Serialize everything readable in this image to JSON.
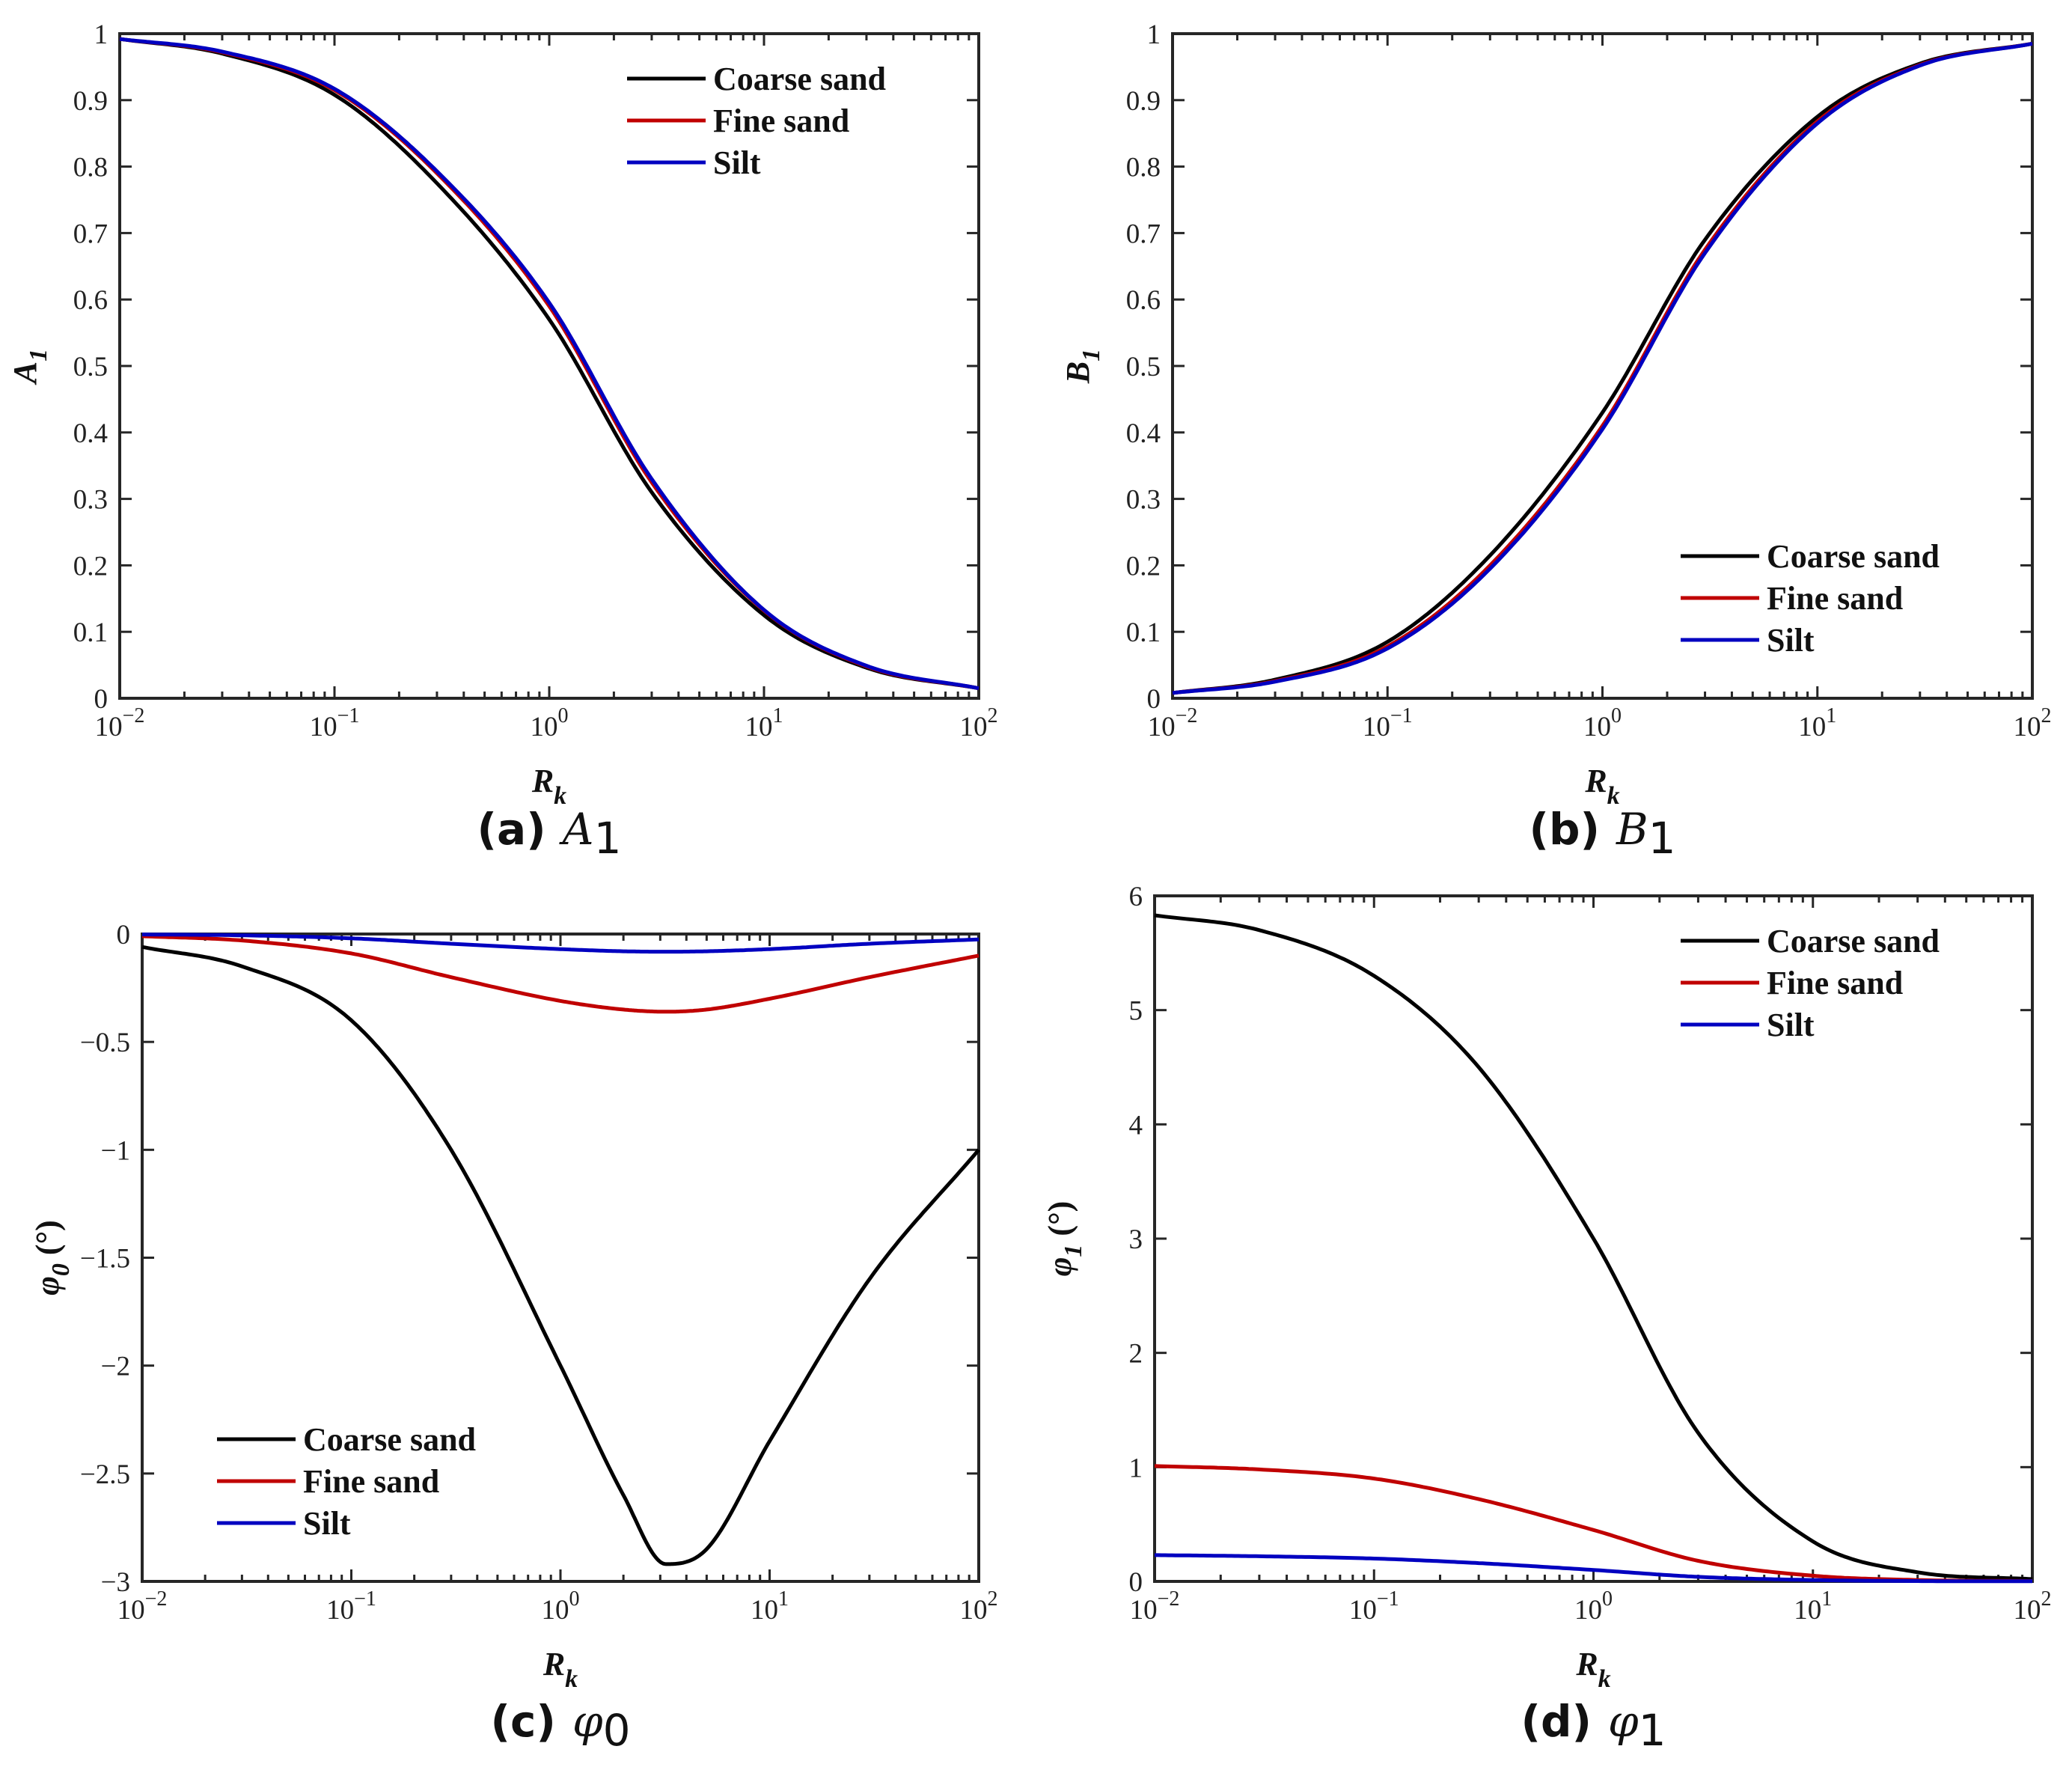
{
  "chart_data": [
    {
      "type": "line",
      "caption": {
        "label": "(a)",
        "symbol": "A",
        "subscript": "1"
      },
      "xlabel": {
        "main": "R",
        "sub": "k"
      },
      "ylabel": {
        "main": "A",
        "sub": "1",
        "suffix": ""
      },
      "xscale": "log",
      "xlim": [
        0.01,
        100
      ],
      "ylim": [
        0,
        1
      ],
      "x_ticks": [
        {
          "base": "10",
          "exp": "−2"
        },
        {
          "base": "10",
          "exp": "−1"
        },
        {
          "base": "10",
          "exp": "0"
        },
        {
          "base": "10",
          "exp": "1"
        },
        {
          "base": "10",
          "exp": "2"
        }
      ],
      "y_ticks": [
        0,
        0.1,
        0.2,
        0.3,
        0.4,
        0.5,
        0.6,
        0.7,
        0.8,
        0.9,
        1
      ],
      "y_tick_labels": [
        "0",
        "0.1",
        "0.2",
        "0.3",
        "0.4",
        "0.5",
        "0.6",
        "0.7",
        "0.8",
        "0.9",
        "1"
      ],
      "legend_position": "top-right",
      "x": [
        0.01,
        0.03,
        0.1,
        0.3,
        1,
        3,
        10,
        30,
        100
      ],
      "series": [
        {
          "name": "Coarse sand",
          "color": "#000000",
          "values": [
            0.992,
            0.97,
            0.908,
            0.775,
            0.57,
            0.31,
            0.125,
            0.046,
            0.015
          ]
        },
        {
          "name": "Fine sand",
          "color": "#c00000",
          "values": [
            0.992,
            0.972,
            0.915,
            0.79,
            0.59,
            0.325,
            0.132,
            0.048,
            0.015
          ]
        },
        {
          "name": "Silt",
          "color": "#0000c0",
          "values": [
            0.992,
            0.973,
            0.917,
            0.793,
            0.595,
            0.33,
            0.133,
            0.049,
            0.015
          ]
        }
      ]
    },
    {
      "type": "line",
      "caption": {
        "label": "(b)",
        "symbol": "B",
        "subscript": "1"
      },
      "xlabel": {
        "main": "R",
        "sub": "k"
      },
      "ylabel": {
        "main": "B",
        "sub": "1",
        "suffix": ""
      },
      "xscale": "log",
      "xlim": [
        0.01,
        100
      ],
      "ylim": [
        0,
        1
      ],
      "x_ticks": [
        {
          "base": "10",
          "exp": "−2"
        },
        {
          "base": "10",
          "exp": "−1"
        },
        {
          "base": "10",
          "exp": "0"
        },
        {
          "base": "10",
          "exp": "1"
        },
        {
          "base": "10",
          "exp": "2"
        }
      ],
      "y_ticks": [
        0,
        0.1,
        0.2,
        0.3,
        0.4,
        0.5,
        0.6,
        0.7,
        0.8,
        0.9,
        1
      ],
      "y_tick_labels": [
        "0",
        "0.1",
        "0.2",
        "0.3",
        "0.4",
        "0.5",
        "0.6",
        "0.7",
        "0.8",
        "0.9",
        "1"
      ],
      "legend_position": "bottom-right",
      "x": [
        0.01,
        0.03,
        0.1,
        0.3,
        1,
        3,
        10,
        30,
        100
      ],
      "series": [
        {
          "name": "Coarse sand",
          "color": "#000000",
          "values": [
            0.008,
            0.028,
            0.085,
            0.215,
            0.43,
            0.69,
            0.875,
            0.955,
            0.985
          ]
        },
        {
          "name": "Fine sand",
          "color": "#c00000",
          "values": [
            0.008,
            0.026,
            0.078,
            0.2,
            0.41,
            0.675,
            0.868,
            0.953,
            0.985
          ]
        },
        {
          "name": "Silt",
          "color": "#0000c0",
          "values": [
            0.008,
            0.025,
            0.075,
            0.195,
            0.405,
            0.67,
            0.865,
            0.952,
            0.985
          ]
        }
      ]
    },
    {
      "type": "line",
      "caption": {
        "label": "(c)",
        "symbol": "φ",
        "subscript": "0"
      },
      "xlabel": {
        "main": "R",
        "sub": "k"
      },
      "ylabel": {
        "main": "φ",
        "sub": "0",
        "suffix": " (°)"
      },
      "xscale": "log",
      "xlim": [
        0.01,
        100
      ],
      "ylim": [
        -3,
        0
      ],
      "x_ticks": [
        {
          "base": "10",
          "exp": "−2"
        },
        {
          "base": "10",
          "exp": "−1"
        },
        {
          "base": "10",
          "exp": "0"
        },
        {
          "base": "10",
          "exp": "1"
        },
        {
          "base": "10",
          "exp": "2"
        }
      ],
      "y_ticks": [
        -3,
        -2.5,
        -2,
        -1.5,
        -1,
        -0.5,
        0
      ],
      "y_tick_labels": [
        "−3",
        "−2.5",
        "−2",
        "−1.5",
        "−1",
        "−0.5",
        "0"
      ],
      "legend_position": "bottom-left",
      "x": [
        0.01,
        0.03,
        0.1,
        0.3,
        1,
        2,
        3.2,
        5,
        10,
        30,
        100
      ],
      "series": [
        {
          "name": "Coarse sand",
          "color": "#000000",
          "values": [
            -0.06,
            -0.15,
            -0.4,
            -1.0,
            -2.0,
            -2.6,
            -2.92,
            -2.85,
            -2.35,
            -1.6,
            -1.0
          ]
        },
        {
          "name": "Fine sand",
          "color": "#c00000",
          "values": [
            -0.01,
            -0.03,
            -0.09,
            -0.2,
            -0.31,
            -0.35,
            -0.36,
            -0.35,
            -0.3,
            -0.2,
            -0.1
          ]
        },
        {
          "name": "Silt",
          "color": "#0000c0",
          "values": [
            -0.002,
            -0.006,
            -0.02,
            -0.045,
            -0.07,
            -0.08,
            -0.082,
            -0.08,
            -0.07,
            -0.045,
            -0.025
          ]
        }
      ]
    },
    {
      "type": "line",
      "caption": {
        "label": "(d)",
        "symbol": "φ",
        "subscript": "1"
      },
      "xlabel": {
        "main": "R",
        "sub": "k"
      },
      "ylabel": {
        "main": "φ",
        "sub": "1",
        "suffix": " (°)"
      },
      "xscale": "log",
      "xlim": [
        0.01,
        100
      ],
      "ylim": [
        0,
        6
      ],
      "x_ticks": [
        {
          "base": "10",
          "exp": "−2"
        },
        {
          "base": "10",
          "exp": "−1"
        },
        {
          "base": "10",
          "exp": "0"
        },
        {
          "base": "10",
          "exp": "1"
        },
        {
          "base": "10",
          "exp": "2"
        }
      ],
      "y_ticks": [
        0,
        1,
        2,
        3,
        4,
        5,
        6
      ],
      "y_tick_labels": [
        "0",
        "1",
        "2",
        "3",
        "4",
        "5",
        "6"
      ],
      "legend_position": "top-right",
      "x": [
        0.01,
        0.03,
        0.1,
        0.3,
        1,
        3,
        10,
        30,
        100
      ],
      "series": [
        {
          "name": "Coarse sand",
          "color": "#000000",
          "values": [
            5.83,
            5.7,
            5.3,
            4.5,
            3.0,
            1.3,
            0.35,
            0.08,
            0.02
          ]
        },
        {
          "name": "Fine sand",
          "color": "#c00000",
          "values": [
            1.01,
            0.98,
            0.9,
            0.72,
            0.45,
            0.18,
            0.05,
            0.012,
            0.003
          ]
        },
        {
          "name": "Silt",
          "color": "#0000c0",
          "values": [
            0.23,
            0.22,
            0.2,
            0.16,
            0.1,
            0.04,
            0.012,
            0.003,
            0.001
          ]
        }
      ]
    }
  ]
}
